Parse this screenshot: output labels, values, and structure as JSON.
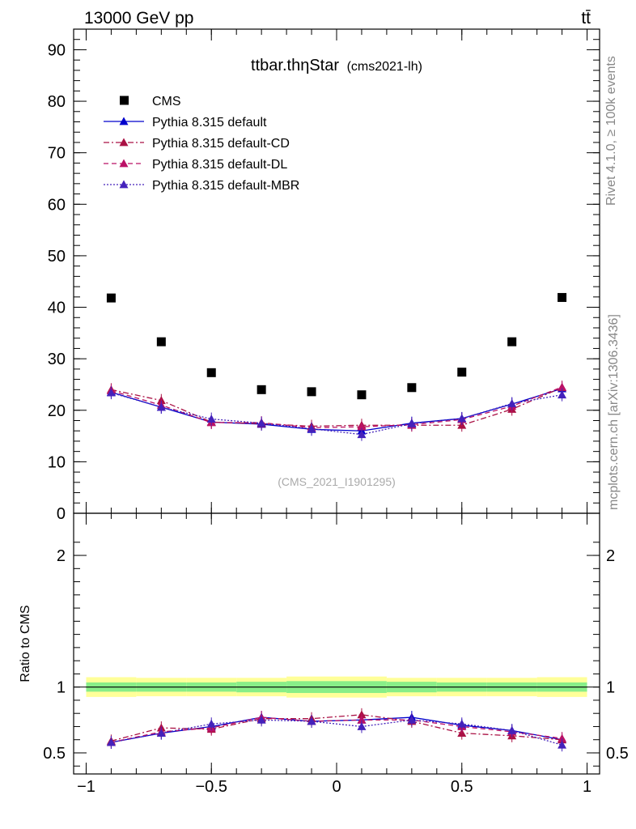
{
  "header": {
    "left": "13000 GeV pp",
    "right": "tt̄"
  },
  "side_labels": {
    "rivet": "Rivet 4.1.0, ≥ 100k events",
    "mcplots": "mcplots.cern.ch [arXiv:1306.3436]"
  },
  "chart_data": [
    {
      "type": "scatter",
      "panel": "main",
      "title": "ttbar.thηStar",
      "title_suffix": "(cms2021-lh)",
      "watermark": "(CMS_2021_I1901295)",
      "xlim": [
        -1.05,
        1.05
      ],
      "ylim": [
        0,
        94
      ],
      "yticks": [
        0,
        10,
        20,
        30,
        40,
        50,
        60,
        70,
        80,
        90
      ],
      "ytick_labels": [
        "0",
        "10",
        "20",
        "30",
        "40",
        "50",
        "60",
        "70",
        "80",
        "90"
      ],
      "xlabel": "",
      "ylabel": "",
      "legend_position": "top-left",
      "x": [
        -0.9,
        -0.7,
        -0.5,
        -0.3,
        -0.1,
        0.1,
        0.3,
        0.5,
        0.7,
        0.9
      ],
      "series": [
        {
          "name": "CMS",
          "marker": "square",
          "color": "#000000",
          "line": "none",
          "values": [
            41.8,
            33.3,
            27.3,
            24.0,
            23.6,
            23.0,
            24.4,
            27.4,
            33.3,
            41.9
          ]
        },
        {
          "name": "Pythia 8.315 default",
          "marker": "triangle",
          "color": "#0000cc",
          "line": "solid",
          "values": [
            23.5,
            20.6,
            17.7,
            17.3,
            16.3,
            16.0,
            17.5,
            18.4,
            21.2,
            24.2
          ]
        },
        {
          "name": "Pythia 8.315 default-CD",
          "marker": "triangle",
          "color": "#aa1144",
          "line": "dashdot",
          "values": [
            24.0,
            21.9,
            17.7,
            17.4,
            16.9,
            17.1,
            17.1,
            17.1,
            20.2,
            24.4
          ]
        },
        {
          "name": "Pythia 8.315 default-DL",
          "marker": "triangle",
          "color": "#bb1166",
          "line": "dashed",
          "values": [
            23.8,
            21.0,
            17.6,
            17.6,
            16.6,
            16.8,
            17.2,
            18.2,
            20.8,
            24.5
          ]
        },
        {
          "name": "Pythia 8.315 default-MBR",
          "marker": "triangle",
          "color": "#4422bb",
          "line": "dotted",
          "values": [
            23.4,
            20.6,
            18.3,
            17.5,
            16.4,
            15.3,
            17.4,
            18.4,
            21.3,
            23.0
          ]
        }
      ]
    },
    {
      "type": "line",
      "panel": "ratio",
      "ylabel": "Ratio to CMS",
      "xlim": [
        -1.05,
        1.05
      ],
      "ylim": [
        0.34,
        2.32
      ],
      "yticks": [
        0.5,
        1,
        2
      ],
      "ytick_labels": [
        "0.5",
        "1",
        "2"
      ],
      "xticks": [
        -1,
        -0.5,
        0,
        0.5,
        1
      ],
      "xtick_labels": [
        "−1",
        "−0.5",
        "0",
        "0.5",
        "1"
      ],
      "reference_line": 1,
      "band_edges": [
        -1,
        -0.8,
        -0.6,
        -0.4,
        -0.2,
        0,
        0.2,
        0.4,
        0.6,
        0.8,
        1
      ],
      "band_inner": [
        0.035,
        0.035,
        0.035,
        0.04,
        0.045,
        0.045,
        0.04,
        0.035,
        0.035,
        0.035
      ],
      "band_outer": [
        0.075,
        0.07,
        0.07,
        0.07,
        0.08,
        0.08,
        0.07,
        0.07,
        0.07,
        0.075
      ],
      "band_colors": {
        "inner": "#88ee88",
        "outer": "#ffff99"
      },
      "x": [
        -0.9,
        -0.7,
        -0.5,
        -0.3,
        -0.1,
        0.1,
        0.3,
        0.5,
        0.7,
        0.9
      ],
      "series": [
        {
          "name": "Pythia 8.315 default",
          "color": "#0000cc",
          "line": "solid",
          "values": [
            0.58,
            0.65,
            0.7,
            0.77,
            0.74,
            0.75,
            0.77,
            0.71,
            0.67,
            0.6
          ]
        },
        {
          "name": "Pythia 8.315 default-CD",
          "color": "#aa1144",
          "line": "dashdot",
          "values": [
            0.59,
            0.69,
            0.68,
            0.76,
            0.76,
            0.79,
            0.74,
            0.65,
            0.63,
            0.6
          ]
        },
        {
          "name": "Pythia 8.315 default-DL",
          "color": "#bb1166",
          "line": "dashed",
          "values": [
            0.58,
            0.66,
            0.69,
            0.77,
            0.74,
            0.75,
            0.75,
            0.7,
            0.66,
            0.61
          ]
        },
        {
          "name": "Pythia 8.315 default-MBR",
          "color": "#4422bb",
          "line": "dotted",
          "values": [
            0.58,
            0.65,
            0.72,
            0.75,
            0.74,
            0.7,
            0.75,
            0.72,
            0.67,
            0.56
          ]
        }
      ]
    }
  ]
}
